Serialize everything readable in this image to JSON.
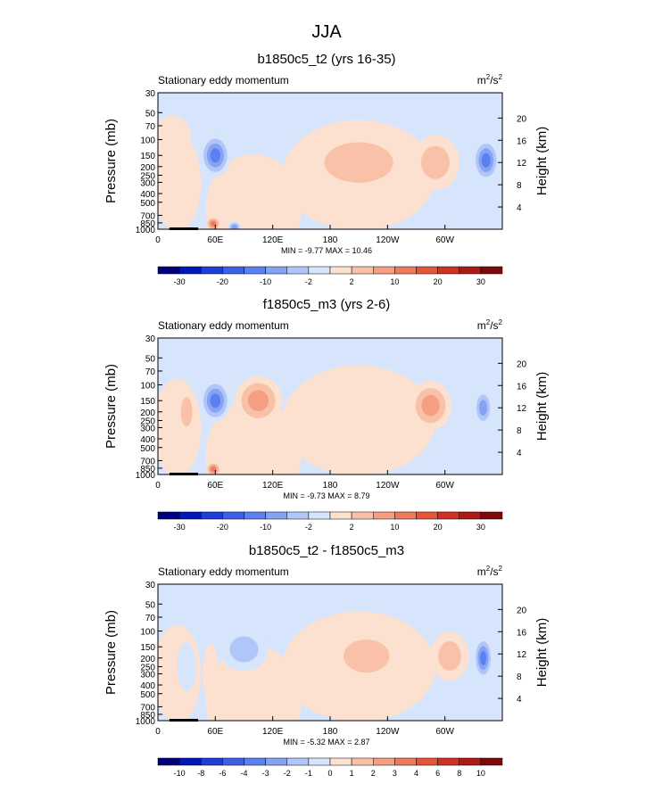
{
  "page_title": "JJA",
  "colors": {
    "neg_scale": [
      "#00007f",
      "#0018b5",
      "#1f3fd6",
      "#3e60e6",
      "#5b80f0",
      "#86a2f3",
      "#b1c6f8",
      "#d6e5fb"
    ],
    "pos_scale": [
      "#fce1d0",
      "#f9c2a8",
      "#f49f82",
      "#ee7a5c",
      "#e55638",
      "#cf3123",
      "#ad1a14",
      "#7d0a0a"
    ],
    "terrain": "#000000"
  },
  "chart_data": [
    {
      "type": "heatmap",
      "title": "b1850c5_t2 (yrs 16-35)",
      "left_label": "Stationary eddy momentum",
      "units": {
        "base": "m",
        "sup1": "2",
        "mid": "/s",
        "sup2": "2"
      },
      "xlabel": "",
      "ylabel": "Pressure (mb)",
      "ylabel_right": "Height (km)",
      "x_ticks": [
        "0",
        "60E",
        "120E",
        "180",
        "120W",
        "60W"
      ],
      "x_tick_values": [
        0,
        60,
        120,
        180,
        240,
        300
      ],
      "xlim": [
        0,
        360
      ],
      "y_ticks": [
        "30",
        "50",
        "70",
        "100",
        "150",
        "200",
        "250",
        "300",
        "400",
        "500",
        "700",
        "850",
        "1000"
      ],
      "y_tick_values": [
        30,
        50,
        70,
        100,
        150,
        200,
        250,
        300,
        400,
        500,
        700,
        850,
        1000
      ],
      "ylim": [
        1000,
        30
      ],
      "height_ticks": [
        "20",
        "16",
        "12",
        "8",
        "4"
      ],
      "height_values": [
        20,
        16,
        12,
        8,
        4
      ],
      "min_max_text": "MIN =  -9.77  MAX =  10.46",
      "colorbar_labels": [
        "-30",
        "-20",
        "-10",
        "-2",
        "2",
        "10",
        "20",
        "30"
      ],
      "contour_levels": [
        -35,
        -30,
        -25,
        -20,
        -15,
        -10,
        -5,
        -2,
        0,
        2,
        5,
        10,
        15,
        20,
        25,
        30,
        35
      ],
      "features": [
        {
          "lon": 15,
          "p": 100,
          "value": 1,
          "width": 20,
          "depth": 0.4
        },
        {
          "lon": 60,
          "p": 150,
          "value": -5,
          "width": 16,
          "depth": 0.35
        },
        {
          "lon": 210,
          "p": 180,
          "value": 2,
          "width": 60,
          "depth": 0.55
        },
        {
          "lon": 290,
          "p": 180,
          "value": 2,
          "width": 25,
          "depth": 0.45
        },
        {
          "lon": 343,
          "p": 170,
          "value": -5,
          "width": 14,
          "depth": 0.35
        },
        {
          "lon": 58,
          "p": 870,
          "value": 4,
          "width": 8,
          "depth": 0.12
        },
        {
          "lon": 80,
          "p": 950,
          "value": -3,
          "width": 7,
          "depth": 0.1
        }
      ]
    },
    {
      "type": "heatmap",
      "title": "f1850c5_m3 (yrs 2-6)",
      "left_label": "Stationary eddy momentum",
      "units": {
        "base": "m",
        "sup1": "2",
        "mid": "/s",
        "sup2": "2"
      },
      "xlabel": "",
      "ylabel": "Pressure (mb)",
      "ylabel_right": "Height (km)",
      "x_ticks": [
        "0",
        "60E",
        "120E",
        "180",
        "120W",
        "60W"
      ],
      "x_tick_values": [
        0,
        60,
        120,
        180,
        240,
        300
      ],
      "xlim": [
        0,
        360
      ],
      "y_ticks": [
        "30",
        "50",
        "70",
        "100",
        "150",
        "200",
        "250",
        "300",
        "400",
        "500",
        "700",
        "850",
        "1000"
      ],
      "y_tick_values": [
        30,
        50,
        70,
        100,
        150,
        200,
        250,
        300,
        400,
        500,
        700,
        850,
        1000
      ],
      "ylim": [
        1000,
        30
      ],
      "height_ticks": [
        "20",
        "16",
        "12",
        "8",
        "4"
      ],
      "height_values": [
        20,
        16,
        12,
        8,
        4
      ],
      "min_max_text": "MIN =  -9.73  MAX =  8.79",
      "colorbar_labels": [
        "-30",
        "-20",
        "-10",
        "-2",
        "2",
        "10",
        "20",
        "30"
      ],
      "contour_levels": [
        -35,
        -30,
        -25,
        -20,
        -15,
        -10,
        -5,
        -2,
        0,
        2,
        5,
        10,
        15,
        20,
        25,
        30,
        35
      ],
      "features": [
        {
          "lon": 60,
          "p": 150,
          "value": -5,
          "width": 16,
          "depth": 0.35
        },
        {
          "lon": 105,
          "p": 150,
          "value": 3,
          "width": 25,
          "depth": 0.4
        },
        {
          "lon": 30,
          "p": 200,
          "value": 2,
          "width": 10,
          "depth": 0.4
        },
        {
          "lon": 285,
          "p": 170,
          "value": 3,
          "width": 22,
          "depth": 0.4
        },
        {
          "lon": 340,
          "p": 180,
          "value": -3,
          "width": 10,
          "depth": 0.3
        },
        {
          "lon": 58,
          "p": 870,
          "value": 4,
          "width": 8,
          "depth": 0.12
        }
      ]
    },
    {
      "type": "heatmap",
      "title": "b1850c5_t2 - f1850c5_m3",
      "left_label": "Stationary eddy momentum",
      "units": {
        "base": "m",
        "sup1": "2",
        "mid": "/s",
        "sup2": "2"
      },
      "xlabel": "",
      "ylabel": "Pressure (mb)",
      "ylabel_right": "Height (km)",
      "x_ticks": [
        "0",
        "60E",
        "120E",
        "180",
        "120W",
        "60W"
      ],
      "x_tick_values": [
        0,
        60,
        120,
        180,
        240,
        300
      ],
      "xlim": [
        0,
        360
      ],
      "y_ticks": [
        "30",
        "50",
        "70",
        "100",
        "150",
        "200",
        "250",
        "300",
        "400",
        "500",
        "700",
        "850",
        "1000"
      ],
      "y_tick_values": [
        30,
        50,
        70,
        100,
        150,
        200,
        250,
        300,
        400,
        500,
        700,
        850,
        1000
      ],
      "ylim": [
        1000,
        30
      ],
      "height_ticks": [
        "20",
        "16",
        "12",
        "8",
        "4"
      ],
      "height_values": [
        20,
        16,
        12,
        8,
        4
      ],
      "min_max_text": "MIN =  -5.32  MAX =  2.87",
      "colorbar_labels": [
        "-10",
        "-8",
        "-6",
        "-4",
        "-3",
        "-2",
        "-1",
        "0",
        "1",
        "2",
        "3",
        "4",
        "6",
        "8",
        "10"
      ],
      "contour_levels": [
        -12,
        -10,
        -8,
        -6,
        -4,
        -3,
        -2,
        -1,
        0,
        1,
        2,
        3,
        4,
        6,
        8,
        10,
        12
      ],
      "features": [
        {
          "lon": 90,
          "p": 160,
          "value": -2,
          "width": 25,
          "depth": 0.35
        },
        {
          "lon": 218,
          "p": 190,
          "value": 2,
          "width": 40,
          "depth": 0.45
        },
        {
          "lon": 305,
          "p": 190,
          "value": 2,
          "width": 20,
          "depth": 0.4
        },
        {
          "lon": 340,
          "p": 200,
          "value": -5,
          "width": 10,
          "depth": 0.35
        },
        {
          "lon": 55,
          "p": 300,
          "value": 1,
          "width": 8,
          "depth": 0.5
        },
        {
          "lon": 30,
          "p": 250,
          "value": -1,
          "width": 10,
          "depth": 0.4
        }
      ]
    }
  ]
}
